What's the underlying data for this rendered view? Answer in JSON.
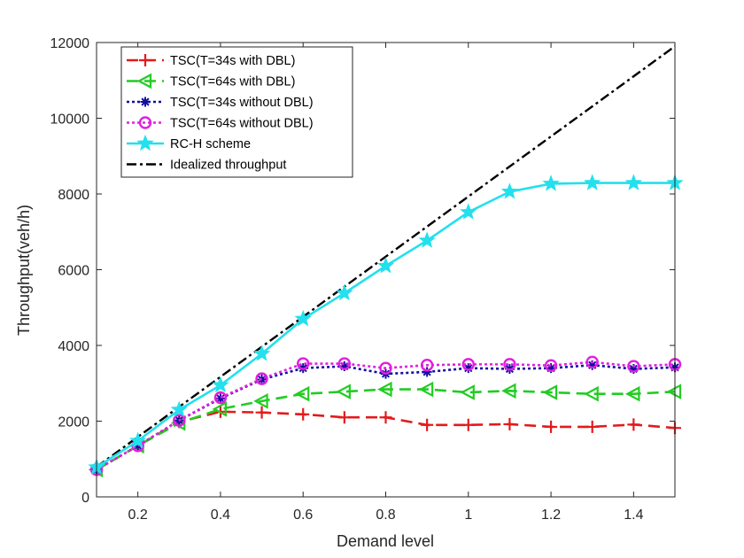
{
  "chart_data": {
    "type": "line",
    "xlabel": "Demand level",
    "ylabel": "Throughput(veh/h)",
    "xlim": [
      0.1,
      1.5
    ],
    "ylim": [
      0,
      12000
    ],
    "xticks": [
      0.2,
      0.4,
      0.6,
      0.8,
      1,
      1.2,
      1.4
    ],
    "xtick_labels": [
      "0.2",
      "0.4",
      "0.6",
      "0.8",
      "1",
      "1.2",
      "1.4"
    ],
    "yticks": [
      0,
      2000,
      4000,
      6000,
      8000,
      10000,
      12000
    ],
    "ytick_labels": [
      "0",
      "2000",
      "4000",
      "6000",
      "8000",
      "10000",
      "12000"
    ],
    "grid": false,
    "legend_position": "top-left",
    "x": [
      0.1,
      0.2,
      0.3,
      0.4,
      0.5,
      0.6,
      0.7,
      0.8,
      0.9,
      1.0,
      1.1,
      1.2,
      1.3,
      1.4,
      1.5
    ],
    "series": [
      {
        "name": "TSC(T=34s with DBL)",
        "color": "#e31a1c",
        "dash": "long-dash",
        "marker": "plus",
        "x": [
          0.1,
          0.2,
          0.3,
          0.4,
          0.5,
          0.6,
          0.7,
          0.8,
          0.9,
          1.0,
          1.1,
          1.2,
          1.3,
          1.4,
          1.5
        ],
        "values": [
          720,
          1350,
          1980,
          2250,
          2230,
          2180,
          2100,
          2100,
          1900,
          1900,
          1920,
          1850,
          1850,
          1910,
          1820
        ]
      },
      {
        "name": "TSC(T=64s with DBL)",
        "color": "#22cc22",
        "dash": "long-dash",
        "marker": "triangle-left",
        "x": [
          0.1,
          0.2,
          0.3,
          0.4,
          0.5,
          0.6,
          0.7,
          0.8,
          0.9,
          1.0,
          1.1,
          1.2,
          1.3,
          1.4,
          1.5
        ],
        "values": [
          720,
          1350,
          1950,
          2320,
          2530,
          2720,
          2780,
          2840,
          2840,
          2760,
          2800,
          2760,
          2720,
          2720,
          2780
        ]
      },
      {
        "name": "TSC(T=34s without DBL)",
        "color": "#1010a0",
        "dash": "dotted",
        "marker": "asterisk",
        "x": [
          0.1,
          0.2,
          0.3,
          0.4,
          0.5,
          0.6,
          0.7,
          0.8,
          0.9,
          1.0,
          1.1,
          1.2,
          1.3,
          1.4,
          1.5
        ],
        "values": [
          720,
          1350,
          2020,
          2600,
          3100,
          3400,
          3450,
          3250,
          3300,
          3400,
          3380,
          3400,
          3480,
          3380,
          3420
        ]
      },
      {
        "name": "TSC(T=64s without DBL)",
        "color": "#e020e0",
        "dash": "dotted",
        "marker": "circle",
        "x": [
          0.1,
          0.2,
          0.3,
          0.4,
          0.5,
          0.6,
          0.7,
          0.8,
          0.9,
          1.0,
          1.1,
          1.2,
          1.3,
          1.4,
          1.5
        ],
        "values": [
          720,
          1350,
          2020,
          2620,
          3120,
          3520,
          3520,
          3400,
          3480,
          3500,
          3500,
          3470,
          3560,
          3450,
          3500
        ]
      },
      {
        "name": "RC-H scheme",
        "color": "#22e0ee",
        "dash": "solid",
        "marker": "star",
        "x": [
          0.1,
          0.2,
          0.3,
          0.4,
          0.5,
          0.6,
          0.7,
          0.8,
          0.9,
          1.0,
          1.1,
          1.2,
          1.3,
          1.4,
          1.5
        ],
        "values": [
          780,
          1480,
          2300,
          2950,
          3780,
          4700,
          5380,
          6100,
          6770,
          7520,
          8060,
          8270,
          8290,
          8290,
          8290
        ]
      },
      {
        "name": "Idealized throughput",
        "color": "#000000",
        "dash": "dash-dot",
        "marker": "none",
        "x": [
          0.1,
          1.5
        ],
        "values": [
          790,
          11900
        ]
      }
    ]
  }
}
